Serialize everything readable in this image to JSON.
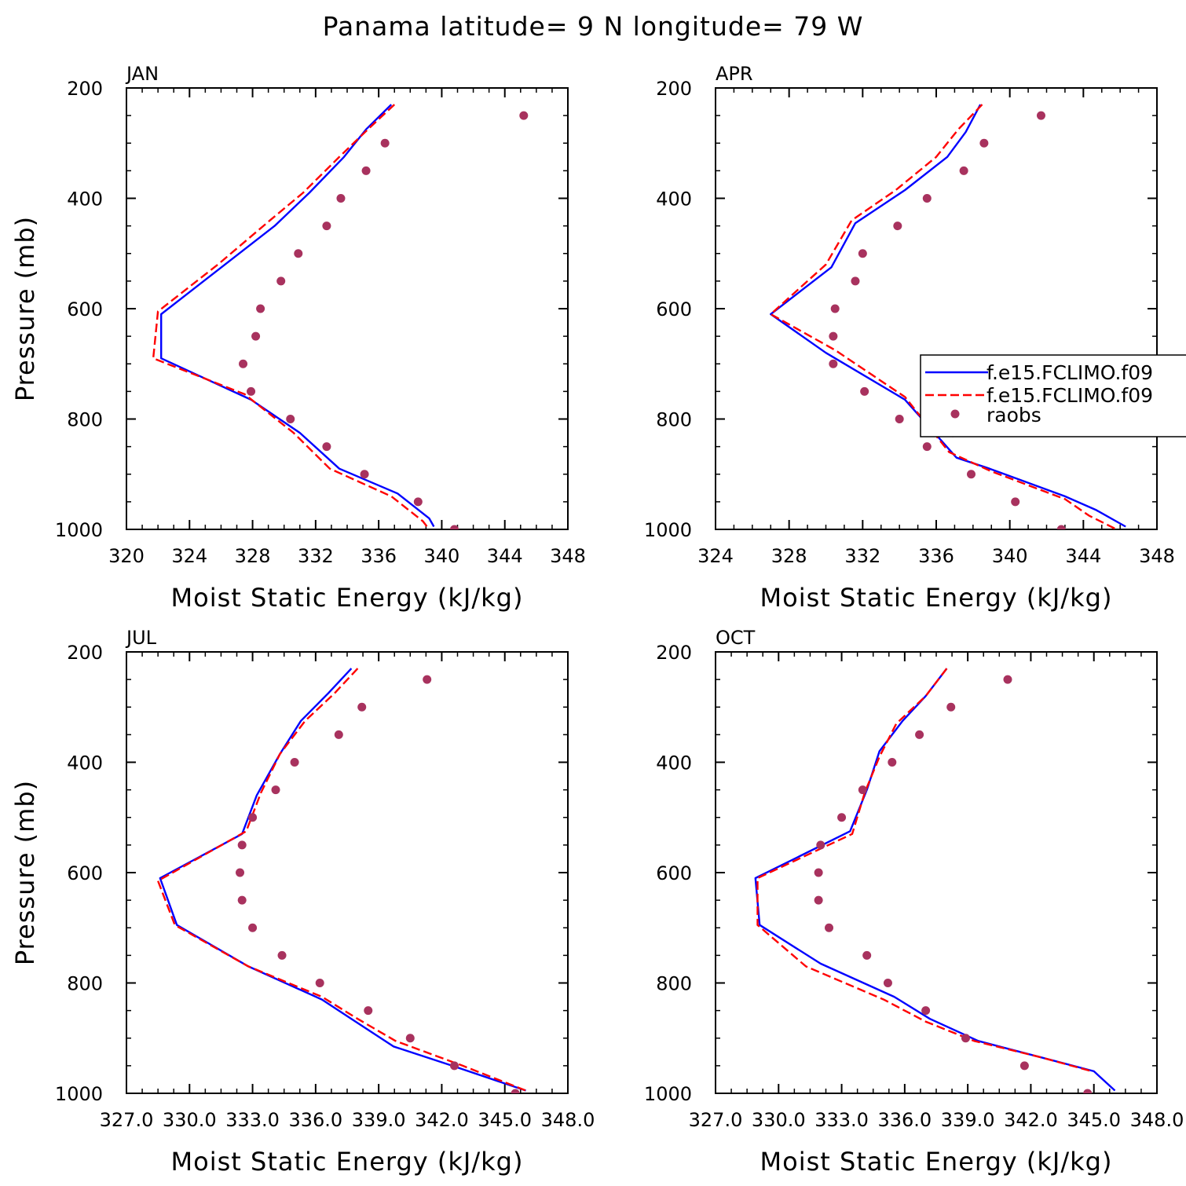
{
  "figure_title": "Panama  latitude= 9 N longitude= 79 W",
  "legend": {
    "entries": [
      "f.e15.FCLIMO.f09",
      "f.e15.FCLIMO.f09",
      "raobs"
    ]
  },
  "colors": {
    "line_model1": "#0000ff",
    "line_model2": "#ff0000",
    "obs": "#a8325e"
  },
  "chart_data": [
    {
      "type": "line",
      "panel": "JAN",
      "xlabel": "Moist Static Energy (kJ/kg)",
      "ylabel": "Pressure (mb)",
      "xlim": [
        320,
        348
      ],
      "ylim": [
        1000,
        200
      ],
      "xticks": [
        320,
        324,
        328,
        332,
        336,
        340,
        344,
        348
      ],
      "xtick_labels": [
        "320",
        "324",
        "328",
        "332",
        "336",
        "340",
        "344",
        "348"
      ],
      "yticks": [
        200,
        400,
        600,
        800,
        1000
      ],
      "ytick_labels": [
        "200",
        "400",
        "600",
        "800",
        "1000"
      ],
      "series": [
        {
          "name": "f.e15.FCLIMO.f09",
          "style": "solid",
          "color": "#0000ff",
          "points": [
            [
              336.8,
              230
            ],
            [
              335.2,
              275
            ],
            [
              333.8,
              325
            ],
            [
              331.6,
              390
            ],
            [
              329.4,
              450
            ],
            [
              325.8,
              530
            ],
            [
              322.2,
              610
            ],
            [
              322.2,
              690
            ],
            [
              327.9,
              765
            ],
            [
              331.0,
              825
            ],
            [
              333.5,
              890
            ],
            [
              337.2,
              935
            ],
            [
              339.2,
              980
            ],
            [
              339.5,
              995
            ]
          ]
        },
        {
          "name": "f.e15.FCLIMO.f09",
          "style": "dashed",
          "color": "#ff0000",
          "points": [
            [
              337.0,
              230
            ],
            [
              335.5,
              270
            ],
            [
              333.5,
              325
            ],
            [
              331.2,
              390
            ],
            [
              329.1,
              440
            ],
            [
              325.8,
              520
            ],
            [
              322.0,
              605
            ],
            [
              321.7,
              690
            ],
            [
              327.5,
              755
            ],
            [
              330.6,
              825
            ],
            [
              332.9,
              890
            ],
            [
              336.8,
              940
            ],
            [
              338.8,
              985
            ],
            [
              339.2,
              1000
            ]
          ]
        },
        {
          "name": "raobs",
          "style": "markers",
          "color": "#a8325e",
          "points": [
            [
              345.2,
              250
            ],
            [
              336.4,
              300
            ],
            [
              335.2,
              350
            ],
            [
              333.6,
              400
            ],
            [
              332.7,
              450
            ],
            [
              330.9,
              500
            ],
            [
              329.8,
              550
            ],
            [
              328.5,
              600
            ],
            [
              328.2,
              650
            ],
            [
              327.4,
              700
            ],
            [
              327.9,
              750
            ],
            [
              330.4,
              800
            ],
            [
              332.7,
              850
            ],
            [
              335.1,
              900
            ],
            [
              338.5,
              950
            ],
            [
              340.8,
              1000
            ]
          ]
        }
      ]
    },
    {
      "type": "line",
      "panel": "APR",
      "xlabel": "Moist Static Energy (kJ/kg)",
      "ylabel": "",
      "xlim": [
        324,
        348
      ],
      "ylim": [
        1000,
        200
      ],
      "xticks": [
        324,
        328,
        332,
        336,
        340,
        344,
        348
      ],
      "xtick_labels": [
        "324",
        "328",
        "332",
        "336",
        "340",
        "344",
        "348"
      ],
      "yticks": [
        200,
        400,
        600,
        800,
        1000
      ],
      "ytick_labels": [
        "200",
        "400",
        "600",
        "800",
        "1000"
      ],
      "series": [
        {
          "name": "f.e15.FCLIMO.f09",
          "style": "solid",
          "color": "#0000ff",
          "points": [
            [
              338.4,
              230
            ],
            [
              337.6,
              280
            ],
            [
              336.6,
              325
            ],
            [
              334.3,
              385
            ],
            [
              331.6,
              445
            ],
            [
              330.3,
              525
            ],
            [
              327.0,
              610
            ],
            [
              330.0,
              680
            ],
            [
              334.3,
              765
            ],
            [
              337.1,
              870
            ],
            [
              338.9,
              890
            ],
            [
              343.0,
              940
            ],
            [
              344.7,
              965
            ],
            [
              346.3,
              995
            ]
          ]
        },
        {
          "name": "f.e15.FCLIMO.f09",
          "style": "dashed",
          "color": "#ff0000",
          "points": [
            [
              338.5,
              230
            ],
            [
              337.2,
              275
            ],
            [
              336.0,
              325
            ],
            [
              333.8,
              385
            ],
            [
              331.4,
              440
            ],
            [
              330.0,
              520
            ],
            [
              327.0,
              610
            ],
            [
              330.5,
              675
            ],
            [
              334.3,
              760
            ],
            [
              336.7,
              860
            ],
            [
              339.0,
              895
            ],
            [
              343.0,
              945
            ],
            [
              344.3,
              975
            ],
            [
              345.8,
              1000
            ]
          ]
        },
        {
          "name": "raobs",
          "style": "markers",
          "color": "#a8325e",
          "points": [
            [
              341.7,
              250
            ],
            [
              338.6,
              300
            ],
            [
              337.5,
              350
            ],
            [
              335.5,
              400
            ],
            [
              333.9,
              450
            ],
            [
              332.0,
              500
            ],
            [
              331.6,
              550
            ],
            [
              330.5,
              600
            ],
            [
              330.4,
              650
            ],
            [
              330.4,
              700
            ],
            [
              332.1,
              750
            ],
            [
              334.0,
              800
            ],
            [
              336.9,
              825
            ],
            [
              335.5,
              850
            ],
            [
              337.9,
              900
            ],
            [
              340.3,
              950
            ],
            [
              342.8,
              1000
            ]
          ]
        }
      ]
    },
    {
      "type": "line",
      "panel": "JUL",
      "xlabel": "Moist Static Energy (kJ/kg)",
      "ylabel": "Pressure (mb)",
      "xlim": [
        327,
        348
      ],
      "ylim": [
        1000,
        200
      ],
      "xticks": [
        327,
        330,
        333,
        336,
        339,
        342,
        345,
        348
      ],
      "xtick_labels": [
        "327.0",
        "330.0",
        "333.0",
        "336.0",
        "339.0",
        "342.0",
        "345.0",
        "348.0"
      ],
      "yticks": [
        200,
        400,
        600,
        800,
        1000
      ],
      "ytick_labels": [
        "200",
        "400",
        "600",
        "800",
        "1000"
      ],
      "series": [
        {
          "name": "f.e15.FCLIMO.f09",
          "style": "solid",
          "color": "#0000ff",
          "points": [
            [
              337.7,
              230
            ],
            [
              336.6,
              275
            ],
            [
              335.3,
              325
            ],
            [
              334.3,
              385
            ],
            [
              333.2,
              460
            ],
            [
              332.5,
              530
            ],
            [
              328.6,
              610
            ],
            [
              329.4,
              695
            ],
            [
              332.8,
              770
            ],
            [
              336.3,
              830
            ],
            [
              337.7,
              865
            ],
            [
              339.7,
              915
            ],
            [
              342.5,
              950
            ],
            [
              346.0,
              995
            ]
          ]
        },
        {
          "name": "f.e15.FCLIMO.f09",
          "style": "dashed",
          "color": "#ff0000",
          "points": [
            [
              338.0,
              230
            ],
            [
              336.9,
              275
            ],
            [
              335.5,
              325
            ],
            [
              334.3,
              385
            ],
            [
              333.4,
              455
            ],
            [
              332.7,
              525
            ],
            [
              328.5,
              615
            ],
            [
              329.3,
              695
            ],
            [
              332.8,
              770
            ],
            [
              336.3,
              825
            ],
            [
              338.0,
              865
            ],
            [
              339.8,
              905
            ],
            [
              343.0,
              950
            ],
            [
              346.0,
              995
            ]
          ]
        },
        {
          "name": "raobs",
          "style": "markers",
          "color": "#a8325e",
          "points": [
            [
              341.3,
              250
            ],
            [
              338.2,
              300
            ],
            [
              337.1,
              350
            ],
            [
              335.0,
              400
            ],
            [
              334.1,
              450
            ],
            [
              333.0,
              500
            ],
            [
              332.5,
              550
            ],
            [
              332.4,
              600
            ],
            [
              332.5,
              650
            ],
            [
              333.0,
              700
            ],
            [
              334.4,
              750
            ],
            [
              336.2,
              800
            ],
            [
              338.5,
              850
            ],
            [
              340.5,
              900
            ],
            [
              342.6,
              950
            ],
            [
              345.5,
              1000
            ]
          ]
        }
      ]
    },
    {
      "type": "line",
      "panel": "OCT",
      "xlabel": "Moist Static Energy (kJ/kg)",
      "ylabel": "",
      "xlim": [
        327,
        348
      ],
      "ylim": [
        1000,
        200
      ],
      "xticks": [
        327,
        330,
        333,
        336,
        339,
        342,
        345,
        348
      ],
      "xtick_labels": [
        "327.0",
        "330.0",
        "333.0",
        "336.0",
        "339.0",
        "342.0",
        "345.0",
        "348.0"
      ],
      "yticks": [
        200,
        400,
        600,
        800,
        1000
      ],
      "ytick_labels": [
        "200",
        "400",
        "600",
        "800",
        "1000"
      ],
      "series": [
        {
          "name": "f.e15.FCLIMO.f09",
          "style": "solid",
          "color": "#0000ff",
          "points": [
            [
              338.0,
              230
            ],
            [
              337.0,
              280
            ],
            [
              335.9,
              325
            ],
            [
              334.8,
              380
            ],
            [
              334.2,
              450
            ],
            [
              333.4,
              525
            ],
            [
              328.9,
              610
            ],
            [
              329.1,
              695
            ],
            [
              332.0,
              765
            ],
            [
              335.5,
              825
            ],
            [
              337.2,
              865
            ],
            [
              339.5,
              905
            ],
            [
              343.0,
              940
            ],
            [
              345.0,
              960
            ],
            [
              346.0,
              995
            ]
          ]
        },
        {
          "name": "f.e15.FCLIMO.f09",
          "style": "dashed",
          "color": "#ff0000",
          "points": [
            [
              338.0,
              230
            ],
            [
              337.0,
              280
            ],
            [
              335.6,
              330
            ],
            [
              334.8,
              390
            ],
            [
              334.1,
              455
            ],
            [
              333.5,
              530
            ],
            [
              329.0,
              610
            ],
            [
              329.0,
              695
            ],
            [
              331.3,
              770
            ],
            [
              335.0,
              830
            ],
            [
              337.0,
              870
            ],
            [
              339.3,
              905
            ],
            [
              342.5,
              935
            ],
            [
              344.9,
              960
            ]
          ]
        },
        {
          "name": "raobs",
          "style": "markers",
          "color": "#a8325e",
          "points": [
            [
              340.9,
              250
            ],
            [
              338.2,
              300
            ],
            [
              336.7,
              350
            ],
            [
              335.4,
              400
            ],
            [
              334.0,
              450
            ],
            [
              333.0,
              500
            ],
            [
              332.0,
              550
            ],
            [
              331.9,
              600
            ],
            [
              331.9,
              650
            ],
            [
              332.4,
              700
            ],
            [
              334.2,
              750
            ],
            [
              335.2,
              800
            ],
            [
              337.0,
              850
            ],
            [
              338.9,
              900
            ],
            [
              341.7,
              950
            ],
            [
              344.7,
              1000
            ]
          ]
        }
      ]
    }
  ]
}
